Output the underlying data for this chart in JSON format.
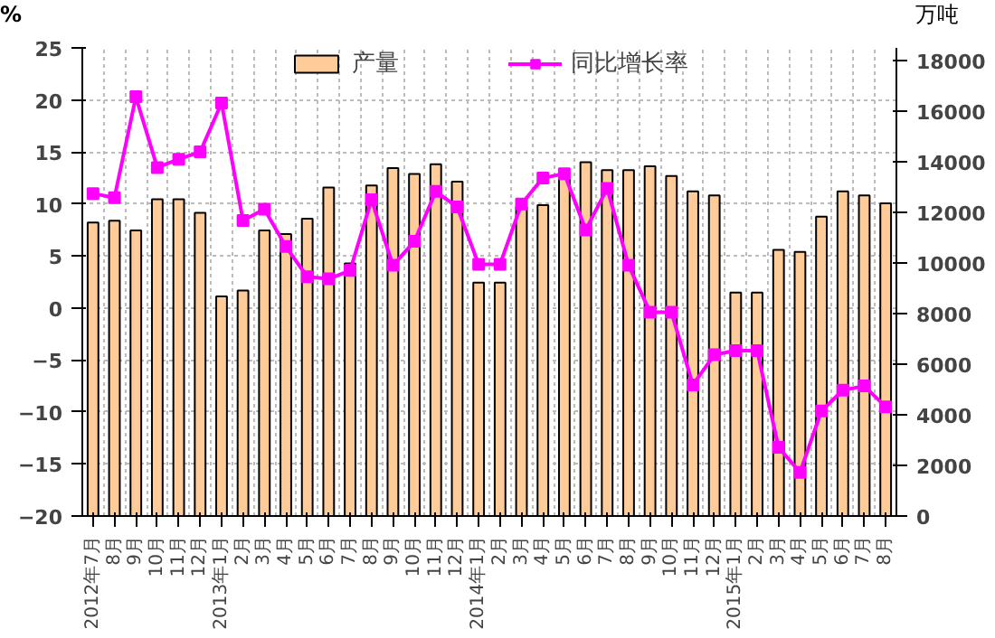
{
  "chart_data": {
    "type": "bar",
    "ylabel": "%",
    "y2label": "万吨",
    "categories": [
      "2012年7月",
      "8月",
      "9月",
      "10月",
      "11月",
      "12月",
      "2013年1月",
      "2月",
      "3月",
      "4月",
      "5月",
      "6月",
      "7月",
      "8月",
      "9月",
      "10月",
      "11月",
      "12月",
      "2014年1月",
      "2月",
      "3月",
      "4月",
      "5月",
      "6月",
      "7月",
      "8月",
      "9月",
      "10月",
      "11月",
      "12月",
      "2015年1月",
      "2月",
      "3月",
      "4月",
      "5月",
      "6月",
      "7月",
      "8月"
    ],
    "series": [
      {
        "name": "产量",
        "axis": "y2",
        "color": "#ffcc99",
        "values": [
          11600,
          11670,
          11290,
          12520,
          12520,
          11980,
          8680,
          8910,
          11290,
          11140,
          11750,
          12980,
          9980,
          13060,
          13750,
          13520,
          13900,
          13210,
          9220,
          9220,
          12210,
          12290,
          13360,
          13980,
          13670,
          13670,
          13820,
          13440,
          12830,
          12670,
          8830,
          8830,
          10520,
          10440,
          11830,
          12830,
          12670,
          12360
        ]
      },
      {
        "name": "同比增长率",
        "type": "line",
        "color": "#ff00ff",
        "marker": "square",
        "values": [
          11.0,
          10.6,
          20.3,
          13.5,
          14.3,
          15.0,
          19.7,
          8.4,
          9.5,
          5.9,
          3.0,
          2.8,
          3.6,
          10.4,
          4.1,
          6.4,
          11.2,
          9.7,
          4.2,
          4.2,
          10.0,
          12.5,
          12.9,
          7.5,
          11.5,
          4.1,
          -0.4,
          -0.4,
          -7.4,
          -4.5,
          -4.1,
          -4.1,
          -13.4,
          -15.8,
          -9.9,
          -7.9,
          -7.5,
          -9.5
        ]
      }
    ],
    "ylim": [
      -20,
      25
    ],
    "yticks": [
      -20,
      -15,
      -10,
      -5,
      0,
      5,
      10,
      15,
      20,
      25
    ],
    "y2lim": [
      0,
      18500
    ],
    "y2ticks": [
      0,
      2000,
      4000,
      6000,
      8000,
      10000,
      12000,
      14000,
      16000,
      18000
    ],
    "grid": true,
    "legend": "top"
  }
}
